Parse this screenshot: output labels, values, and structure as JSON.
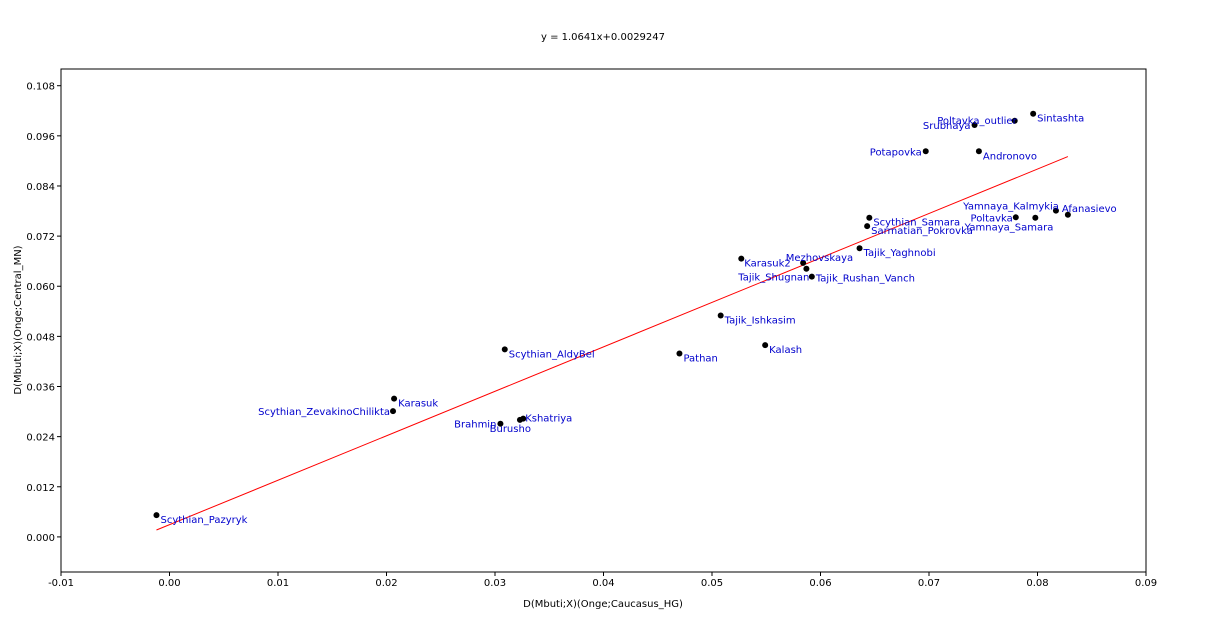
{
  "chart_data": {
    "type": "scatter",
    "title": "y = 1.0641x+0.0029247",
    "xlabel": "D(Mbuti;X)(Onge;Caucasus_HG)",
    "ylabel": "D(Mbuti;X)(Onge;Central_MN)",
    "xlim": [
      -0.01,
      0.09
    ],
    "ylim": [
      -0.0084,
      0.112
    ],
    "x_ticks": [
      "-0.01",
      "0.00",
      "0.01",
      "0.02",
      "0.03",
      "0.04",
      "0.05",
      "0.06",
      "0.07",
      "0.08",
      "0.09"
    ],
    "y_ticks": [
      "0.000",
      "0.012",
      "0.024",
      "0.036",
      "0.048",
      "0.060",
      "0.072",
      "0.084",
      "0.096",
      "0.108"
    ],
    "grid": false,
    "legend": "none",
    "colors": {
      "point": "#000000",
      "label": "#0000cc",
      "fit_line": "#ff0000",
      "frame": "#000000"
    },
    "fit_line": {
      "slope": 1.0641,
      "intercept": 0.0029247,
      "x_range": [
        -0.0012,
        0.0828
      ]
    },
    "points": [
      {
        "label": "Scythian_Pazyryk",
        "x": -0.0012,
        "y": 0.0052,
        "anchor": "start",
        "dx": 4,
        "dy": 8
      },
      {
        "label": "Karasuk",
        "x": 0.0207,
        "y": 0.0331,
        "anchor": "start",
        "dx": 4,
        "dy": 8
      },
      {
        "label": "Scythian_ZevakinoChilikta",
        "x": 0.0206,
        "y": 0.0301,
        "anchor": "end",
        "dx": -3,
        "dy": 4
      },
      {
        "label": "Brahmin",
        "x": 0.0305,
        "y": 0.0271,
        "anchor": "end",
        "dx": -4,
        "dy": 4
      },
      {
        "label": "Burusho",
        "x": 0.0323,
        "y": 0.028,
        "anchor": "end",
        "dx": 11,
        "dy": 12
      },
      {
        "label": "Kshatriya",
        "x": 0.0326,
        "y": 0.0283,
        "anchor": "start",
        "dx": 2,
        "dy": 3
      },
      {
        "label": "Scythian_AldyBel",
        "x": 0.0309,
        "y": 0.0449,
        "anchor": "start",
        "dx": 4,
        "dy": 8
      },
      {
        "label": "Pathan",
        "x": 0.047,
        "y": 0.0439,
        "anchor": "start",
        "dx": 4,
        "dy": 8
      },
      {
        "label": "Kalash",
        "x": 0.0549,
        "y": 0.0459,
        "anchor": "start",
        "dx": 4,
        "dy": 8
      },
      {
        "label": "Tajik_Ishkasim",
        "x": 0.0508,
        "y": 0.053,
        "anchor": "start",
        "dx": 4,
        "dy": 8
      },
      {
        "label": "Karasuk2",
        "x": 0.0527,
        "y": 0.0666,
        "anchor": "start",
        "dx": 3,
        "dy": 8
      },
      {
        "label": "Mezhovskaya",
        "x": 0.0584,
        "y": 0.0656,
        "anchor": "end",
        "dx": 50,
        "dy": -2
      },
      {
        "label": "Tajik_Shugnan",
        "x": 0.0587,
        "y": 0.0642,
        "anchor": "end",
        "dx": 3,
        "dy": 12
      },
      {
        "label": "Tajik_Rushan_Vanch",
        "x": 0.0592,
        "y": 0.0623,
        "anchor": "start",
        "dx": 4,
        "dy": 5
      },
      {
        "label": "Tajik_Yaghnobi",
        "x": 0.0636,
        "y": 0.0691,
        "anchor": "start",
        "dx": 4,
        "dy": 8
      },
      {
        "label": "Scythian_Samara",
        "x": 0.0645,
        "y": 0.0764,
        "anchor": "start",
        "dx": 4,
        "dy": 8
      },
      {
        "label": "Sarmatian_Pokrovka",
        "x": 0.0643,
        "y": 0.0744,
        "anchor": "start",
        "dx": 4,
        "dy": 8
      },
      {
        "label": "Potapovka",
        "x": 0.0697,
        "y": 0.0923,
        "anchor": "end",
        "dx": -4,
        "dy": 4
      },
      {
        "label": "Andronovo",
        "x": 0.0746,
        "y": 0.0923,
        "anchor": "start",
        "dx": 4,
        "dy": 8
      },
      {
        "label": "Srubnaya",
        "x": 0.0742,
        "y": 0.0986,
        "anchor": "end",
        "dx": -4,
        "dy": 4
      },
      {
        "label": "Poltavka_outlier",
        "x": 0.0779,
        "y": 0.0996,
        "anchor": "end",
        "dx": 2,
        "dy": 3
      },
      {
        "label": "Sintashta",
        "x": 0.0796,
        "y": 0.1013,
        "anchor": "start",
        "dx": 4,
        "dy": 8
      },
      {
        "label": "Yamnaya_Kalmykia",
        "x": 0.0817,
        "y": 0.0781,
        "anchor": "end",
        "dx": 3,
        "dy": -1
      },
      {
        "label": "Afanasievo",
        "x": 0.0828,
        "y": 0.0771,
        "anchor": "start",
        "dx": -6,
        "dy": -3
      },
      {
        "label": "Poltavka",
        "x": 0.078,
        "y": 0.0765,
        "anchor": "end",
        "dx": -3,
        "dy": 4
      },
      {
        "label": "Yamnaya_Samara",
        "x": 0.0798,
        "y": 0.0764,
        "anchor": "end",
        "dx": 18,
        "dy": 13
      }
    ]
  }
}
